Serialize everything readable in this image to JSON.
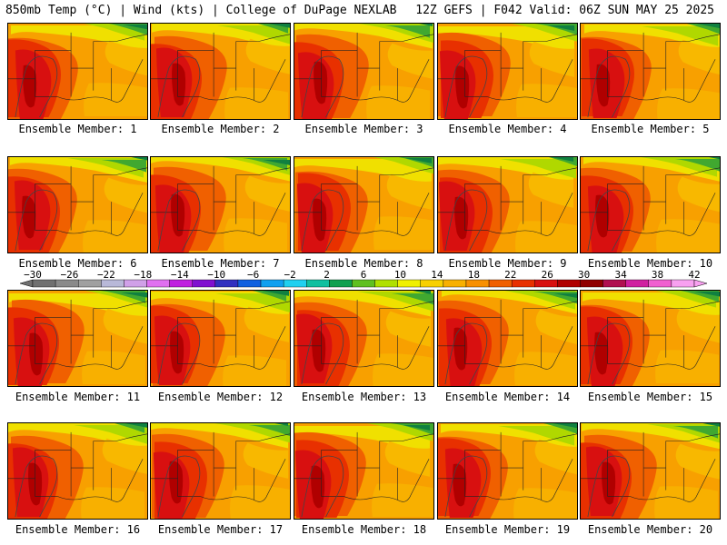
{
  "header": {
    "left": "850mb Temp (°C) | Wind (kts) | College of DuPage NEXLAB",
    "right": "12Z GEFS | F042 Valid: 06Z SUN MAY 25 2025"
  },
  "colorbar": {
    "tick_labels": [
      "−30",
      "−26",
      "−22",
      "−18",
      "−14",
      "−10",
      "−6",
      "−2",
      "2",
      "6",
      "10",
      "14",
      "18",
      "22",
      "26",
      "30",
      "34",
      "38",
      "42"
    ],
    "colors": [
      "#707070",
      "#8a8a8a",
      "#a0a0a0",
      "#b8b8d8",
      "#d0a0e8",
      "#e070f0",
      "#c020e0",
      "#8010d0",
      "#3030c0",
      "#1060e0",
      "#10a0f0",
      "#20d0f0",
      "#10c0a0",
      "#10a050",
      "#60c020",
      "#b0e000",
      "#f0f000",
      "#f8d000",
      "#f8b000",
      "#f89000",
      "#f06000",
      "#e83000",
      "#d81010",
      "#b00000",
      "#900000",
      "#b01050",
      "#d020a0",
      "#f060d0",
      "#f8a0f0"
    ]
  },
  "panels": [
    {
      "caption": "Ensemble Member: 1"
    },
    {
      "caption": "Ensemble Member: 2"
    },
    {
      "caption": "Ensemble Member: 3"
    },
    {
      "caption": "Ensemble Member: 4"
    },
    {
      "caption": "Ensemble Member: 5"
    },
    {
      "caption": "Ensemble Member: 6"
    },
    {
      "caption": "Ensemble Member: 7"
    },
    {
      "caption": "Ensemble Member: 8"
    },
    {
      "caption": "Ensemble Member: 9"
    },
    {
      "caption": "Ensemble Member: 10"
    },
    {
      "caption": "Ensemble Member: 11"
    },
    {
      "caption": "Ensemble Member: 12"
    },
    {
      "caption": "Ensemble Member: 13"
    },
    {
      "caption": "Ensemble Member: 14"
    },
    {
      "caption": "Ensemble Member: 15"
    },
    {
      "caption": "Ensemble Member: 16"
    },
    {
      "caption": "Ensemble Member: 17"
    },
    {
      "caption": "Ensemble Member: 18"
    },
    {
      "caption": "Ensemble Member: 19"
    },
    {
      "caption": "Ensemble Member: 20"
    }
  ]
}
